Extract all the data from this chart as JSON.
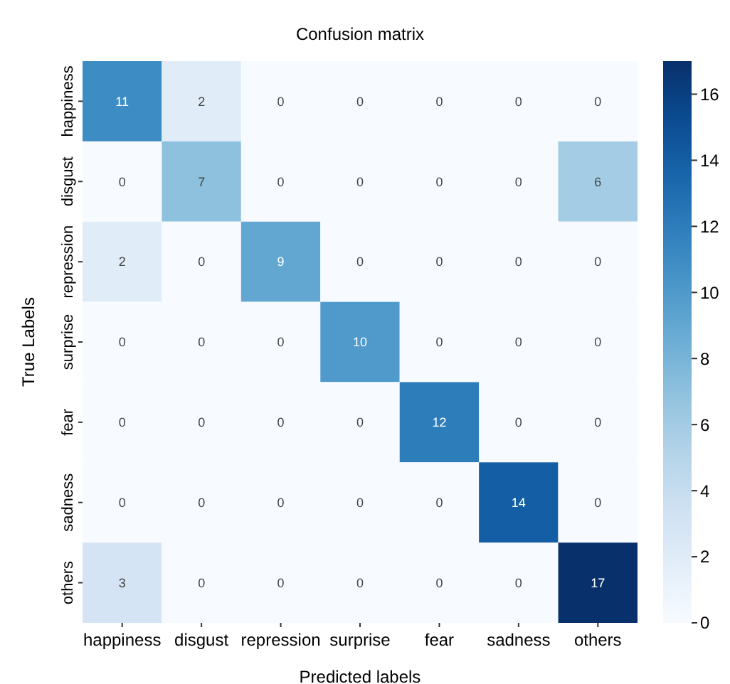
{
  "chart_data": {
    "type": "heatmap",
    "title": "Confusion matrix",
    "xlabel": "Predicted labels",
    "ylabel": "True Labels",
    "categories": [
      "happiness",
      "disgust",
      "repression",
      "surprise",
      "fear",
      "sadness",
      "others"
    ],
    "y_categories": [
      "happiness",
      "disgust",
      "repression",
      "surprise",
      "fear",
      "sadness",
      "others"
    ],
    "cells": [
      [
        11,
        2,
        0,
        0,
        0,
        0,
        0
      ],
      [
        0,
        7,
        0,
        0,
        0,
        0,
        6
      ],
      [
        2,
        0,
        9,
        0,
        0,
        0,
        0
      ],
      [
        0,
        0,
        0,
        10,
        0,
        0,
        0
      ],
      [
        0,
        0,
        0,
        0,
        12,
        0,
        0
      ],
      [
        0,
        0,
        0,
        0,
        0,
        14,
        0
      ],
      [
        3,
        0,
        0,
        0,
        0,
        0,
        17
      ]
    ],
    "clim": [
      0,
      17
    ],
    "cticks": [
      0,
      2,
      4,
      6,
      8,
      10,
      12,
      14,
      16
    ],
    "data_labels": true
  }
}
